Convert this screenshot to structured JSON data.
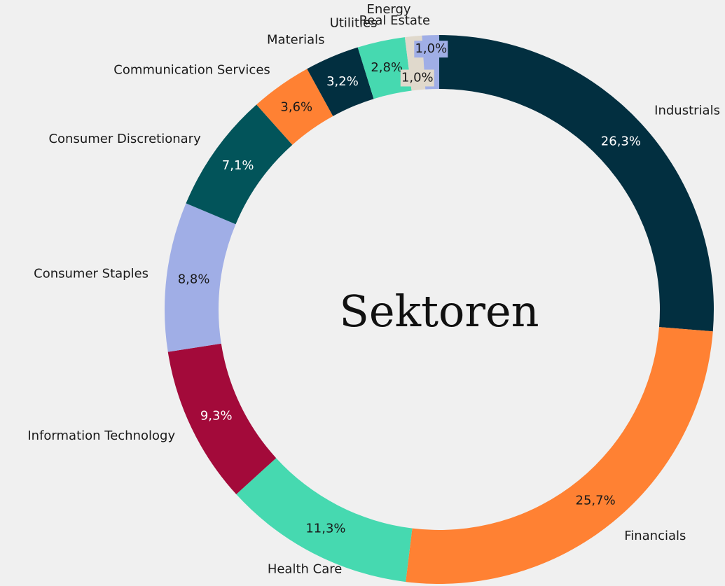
{
  "chart_data": {
    "type": "donut",
    "title": "Sektoren",
    "categories": [
      "Industrials",
      "Financials",
      "Health Care",
      "Information Technology",
      "Consumer Staples",
      "Consumer Discretionary",
      "Communication Services",
      "Materials",
      "Utilities",
      "Energy",
      "Real Estate"
    ],
    "values": [
      26.3,
      25.7,
      11.3,
      9.3,
      8.8,
      7.1,
      3.6,
      3.2,
      2.8,
      1.0,
      1.0
    ],
    "value_labels": [
      "26,3%",
      "25,7%",
      "11,3%",
      "9,3%",
      "8,8%",
      "7,1%",
      "3,6%",
      "3,2%",
      "2,8%",
      "1,0%",
      "1,0%"
    ],
    "colors": [
      "#022f40",
      "#ff8133",
      "#46d9b0",
      "#a30a3a",
      "#a0aee6",
      "#02545a",
      "#ff8133",
      "#022f40",
      "#46d9b0",
      "#e0d9cc",
      "#a0aee6"
    ]
  }
}
